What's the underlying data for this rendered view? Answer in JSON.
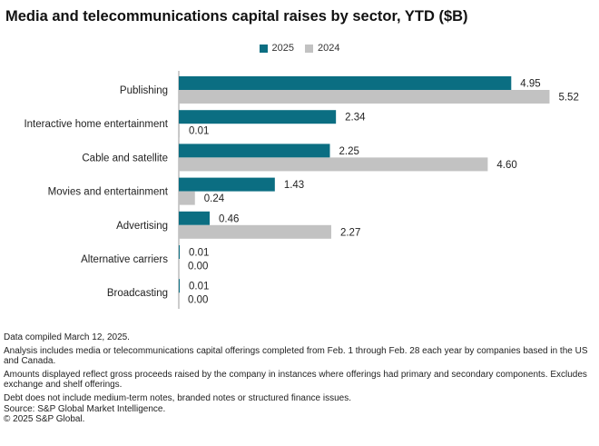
{
  "title": "Media and telecommunications capital raises by sector, YTD ($B)",
  "colors": {
    "s2025": "#0b6e82",
    "s2024": "#c2c2c2",
    "axis": "#999999"
  },
  "chart_data": {
    "type": "bar",
    "orientation": "horizontal",
    "title": "Media and telecommunications capital raises by sector, YTD ($B)",
    "legend_position": "top-center",
    "xlim": [
      0,
      6
    ],
    "categories": [
      "Publishing",
      "Interactive home entertainment",
      "Cable and satellite",
      "Movies and entertainment",
      "Advertising",
      "Alternative carriers",
      "Broadcasting"
    ],
    "series": [
      {
        "name": "2025",
        "values": [
          4.95,
          2.34,
          2.25,
          1.43,
          0.46,
          0.01,
          0.01
        ],
        "labels": [
          "4.95",
          "2.34",
          "2.25",
          "1.43",
          "0.46",
          "0.01",
          "0.01"
        ]
      },
      {
        "name": "2024",
        "values": [
          5.52,
          0.01,
          4.6,
          0.24,
          2.27,
          0.0,
          0.0
        ],
        "labels": [
          "5.52",
          "0.01",
          "4.60",
          "0.24",
          "2.27",
          "0.00",
          "0.00"
        ]
      }
    ]
  },
  "notes": [
    "Data compiled March 12, 2025.",
    "Analysis includes media or telecommunications capital offerings completed from Feb. 1 through Feb. 28 each year by companies based in the US and Canada.",
    "Amounts displayed reflect gross proceeds raised by the company in instances where offerings had primary and secondary components. Excludes exchange and shelf offerings.",
    "Debt does not include medium-term notes, branded notes or structured finance issues.",
    "Source: S&P Global Market Intelligence.",
    "© 2025 S&P Global."
  ]
}
